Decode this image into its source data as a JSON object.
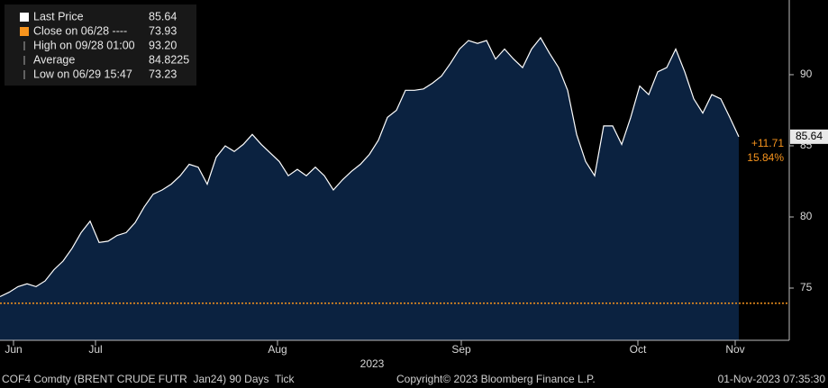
{
  "chart_data": {
    "type": "line",
    "series": [
      {
        "name": "Last Price",
        "color": "#ffffff",
        "fill": "#0b2240",
        "values": [
          74.4,
          74.7,
          75.1,
          75.3,
          75.1,
          75.5,
          76.3,
          76.9,
          77.8,
          78.9,
          79.7,
          78.2,
          78.3,
          78.7,
          78.9,
          79.6,
          80.7,
          81.6,
          81.9,
          82.3,
          82.9,
          83.7,
          83.5,
          82.3,
          84.2,
          85.0,
          84.6,
          85.1,
          85.8,
          85.1,
          84.5,
          83.9,
          82.9,
          83.35,
          82.9,
          83.5,
          82.9,
          81.9,
          82.6,
          83.2,
          83.7,
          84.4,
          85.4,
          87.0,
          87.5,
          88.9,
          88.9,
          89.0,
          89.4,
          89.9,
          90.8,
          91.8,
          92.4,
          92.2,
          92.4,
          91.1,
          91.8,
          91.1,
          90.5,
          91.8,
          92.6,
          91.5,
          90.5,
          88.9,
          85.8,
          83.9,
          82.9,
          86.4,
          86.4,
          85.1,
          87.0,
          89.2,
          88.6,
          90.2,
          90.5,
          91.8,
          90.2,
          88.3,
          87.3,
          88.6,
          88.3,
          87.0,
          85.64
        ]
      }
    ],
    "xlim": [
      0,
      87.5
    ],
    "xticks": [
      {
        "value": 1.5,
        "label": "Jun"
      },
      {
        "value": 10.6,
        "label": "Jul"
      },
      {
        "value": 30.8,
        "label": "Aug"
      },
      {
        "value": 51.2,
        "label": "Sep"
      },
      {
        "value": 70.8,
        "label": "Oct"
      },
      {
        "value": 81.6,
        "label": "Nov"
      }
    ],
    "year_label": "2023",
    "ylim": [
      71.33,
      95.25
    ],
    "yticks": [
      75,
      80,
      85,
      90
    ],
    "legend": [
      {
        "label": "Last Price",
        "value": 85.64,
        "color": "#ffffff"
      },
      {
        "label": "Close on 06/28 ----",
        "value": 73.93,
        "color": "#f7941d"
      },
      {
        "label": "High on 09/28 01:00",
        "value": {
          "value": 93.2,
          "label": "93.20"
        }
      },
      {
        "label": "Average",
        "value": 84.8225
      },
      {
        "label": "Low on 06/29 15:47",
        "value": 73.23
      }
    ],
    "change": {
      "value": 11.71,
      "label": "+11.71"
    },
    "change_pct": {
      "value": 15.84,
      "label": "15.84%"
    },
    "footer": {
      "left": "COF4 Comdty (BRENT CRUDE FUTR  Jan24) 90 Days  Tick",
      "center": "Copyright© 2023 Bloomberg Finance L.P.",
      "right": "01-Nov-2023 07:35:30"
    }
  }
}
